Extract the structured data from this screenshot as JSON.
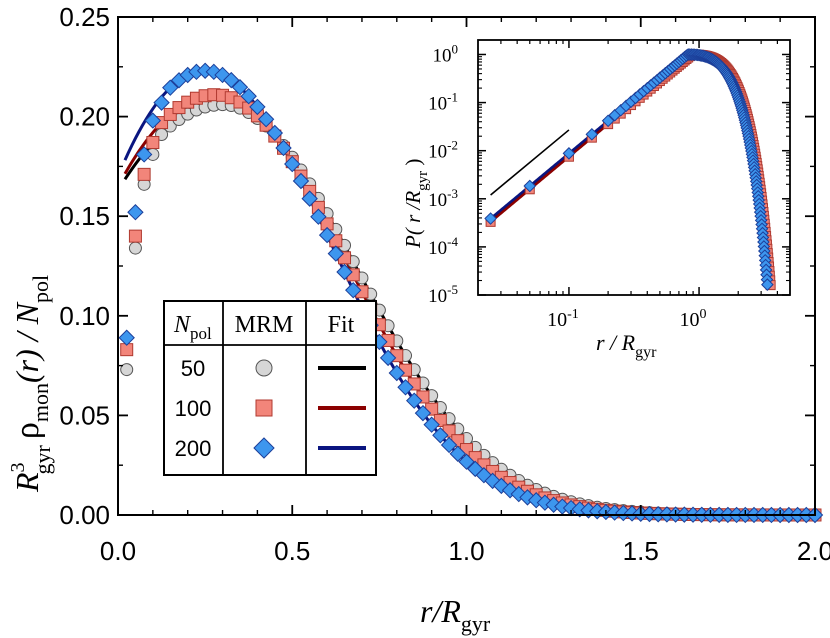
{
  "chart_data": [
    {
      "type": "scatter",
      "xlim": [
        0,
        2
      ],
      "ylim": [
        0,
        0.25
      ],
      "x_ticks": [
        "0.0",
        "0.5",
        "1.0",
        "1.5",
        "2.0"
      ],
      "y_ticks": [
        "0.00",
        "0.05",
        "0.10",
        "0.15",
        "0.20",
        "0.25"
      ],
      "xlabel": {
        "main": "r/R",
        "sub": "gyr"
      },
      "ylabel": {
        "r": "R",
        "sup3": "3",
        "sub_gyr": "gyr",
        "rho": "ρ",
        "sub_mon": "mon",
        "mid": "(r) / N",
        "sub_pol": "pol"
      },
      "grid": false,
      "legend": {
        "placement": "lower-left",
        "header_n": "N",
        "header_n_sub": "pol",
        "header_mrm": "MRM",
        "header_fit": "Fit",
        "rows": [
          {
            "n": "50",
            "marker": "circle",
            "fill": "#d6d6d6",
            "stroke": "#555555",
            "line": "#000000"
          },
          {
            "n": "100",
            "marker": "square",
            "fill": "#f2857a",
            "stroke": "#b03a30",
            "line": "#8b0000"
          },
          {
            "n": "200",
            "marker": "diamond",
            "fill": "#3d96ee",
            "stroke": "#1c3f9a",
            "line": "#0a1580"
          }
        ]
      },
      "series": [
        {
          "n": "50",
          "marker": "circle",
          "fill": "#d6d6d6",
          "stroke": "#555555",
          "line": "#000000",
          "points_x": [
            0.025,
            0.05,
            0.075,
            0.1,
            0.125
          ],
          "points_y": [
            0.073,
            0.134,
            0.166,
            0.181,
            0.191
          ],
          "fit": {
            "a": 0.163,
            "b": 0.3,
            "p": 0.206,
            "s": 0.54
          }
        },
        {
          "n": "100",
          "marker": "square",
          "fill": "#f2857a",
          "stroke": "#b03a30",
          "line": "#8b0000",
          "points_x": [
            0.025,
            0.05,
            0.075,
            0.1,
            0.125
          ],
          "points_y": [
            0.083,
            0.14,
            0.171,
            0.187,
            0.197
          ],
          "fit": {
            "a": 0.165,
            "b": 0.28,
            "p": 0.211,
            "s": 0.528
          }
        },
        {
          "n": "200",
          "marker": "diamond",
          "fill": "#3d96ee",
          "stroke": "#1c3f9a",
          "line": "#0a1580",
          "points_x": [
            0.025,
            0.05,
            0.075,
            0.1,
            0.125
          ],
          "points_y": [
            0.089,
            0.152,
            0.181,
            0.198,
            0.207
          ],
          "fit": {
            "a": 0.17,
            "b": 0.25,
            "p": 0.223,
            "s": 0.515
          }
        }
      ],
      "point_step": 0.025,
      "point_end": 2.0
    },
    {
      "type": "scatter",
      "scale": "log-log",
      "xlim": [
        0.02,
        5
      ],
      "ylim": [
        1e-05,
        2
      ],
      "x_ticks": [
        {
          "base": "10",
          "exp": "-1",
          "value": 0.1
        },
        {
          "base": "10",
          "exp": "0",
          "value": 1
        }
      ],
      "y_ticks": [
        {
          "base": "10",
          "exp": "0",
          "value": 1
        },
        {
          "base": "10",
          "exp": "-1",
          "value": 0.1
        },
        {
          "base": "10",
          "exp": "-2",
          "value": 0.01
        },
        {
          "base": "10",
          "exp": "-3",
          "value": 0.001
        },
        {
          "base": "10",
          "exp": "-4",
          "value": 0.0001
        },
        {
          "base": "10",
          "exp": "-5",
          "value": 1e-05
        }
      ],
      "xlabel": {
        "main": "r / R",
        "sub": "gyr"
      },
      "ylabel": {
        "main": "P( r /R",
        "sub": "gyr",
        "end": " )"
      },
      "grid": false,
      "reference_line": {
        "x": [
          0.025,
          0.1
        ],
        "y": [
          0.0012,
          0.027
        ],
        "color": "#000000"
      },
      "series": [
        {
          "n": "50",
          "marker": "circle",
          "fill": "#d6d6d6",
          "stroke": "#555555",
          "line": "#000000",
          "peak": 0.85,
          "cutoff": 3.5
        },
        {
          "n": "100",
          "marker": "square",
          "fill": "#f2857a",
          "stroke": "#b03a30",
          "line": "#8b0000",
          "peak": 0.88,
          "cutoff": 3.6
        },
        {
          "n": "200",
          "marker": "diamond",
          "fill": "#3d96ee",
          "stroke": "#1c3f9a",
          "line": "#0a1580",
          "peak": 0.82,
          "cutoff": 3.4
        }
      ]
    }
  ]
}
